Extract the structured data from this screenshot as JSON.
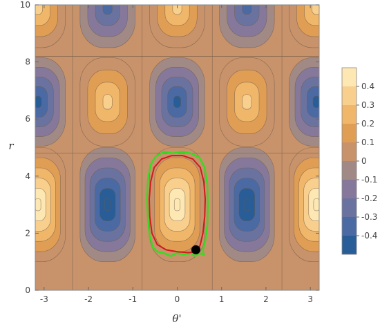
{
  "chart_data": {
    "type": "contour",
    "xlabel": "θ'",
    "ylabel": "r",
    "xlim": [
      -3.2,
      3.2
    ],
    "ylim": [
      0,
      10
    ],
    "x_ticks": [
      -3,
      -2,
      -1,
      0,
      1,
      2,
      3
    ],
    "y_ticks": [
      0,
      2,
      4,
      6,
      8,
      10
    ],
    "x_tick_labels": [
      "-3",
      "-2",
      "-1",
      "0",
      "1",
      "2",
      "3"
    ],
    "y_tick_labels": [
      "0",
      "2",
      "4",
      "6",
      "8",
      "10"
    ],
    "colorbar": {
      "levels": [
        -0.4,
        -0.3,
        -0.2,
        -0.1,
        0,
        0.1,
        0.2,
        0.3,
        0.4
      ],
      "labels": [
        "-0.4",
        "-0.3",
        "-0.2",
        "-0.1",
        "0",
        "0.1",
        "0.2",
        "0.3",
        "0.4"
      ],
      "range": [
        -0.5,
        0.5
      ],
      "colors": [
        "#295d97",
        "#4b6aa3",
        "#6a73a0",
        "#86789a",
        "#a18a85",
        "#c8926a",
        "#e09e55",
        "#f0b669",
        "#f8cf8d",
        "#fde7b3",
        "#fff6d8"
      ]
    },
    "regions": [
      {
        "r_range": [
          0,
          4.8
        ],
        "band": "lower",
        "extrema": [
          {
            "theta": -3.14,
            "r": 3.0,
            "value": 0.45
          },
          {
            "theta": -1.57,
            "r": 3.0,
            "value": -0.45
          },
          {
            "theta": 0.0,
            "r": 3.0,
            "value": 0.45
          },
          {
            "theta": 1.57,
            "r": 3.0,
            "value": -0.45
          },
          {
            "theta": 3.14,
            "r": 3.0,
            "value": 0.45
          }
        ]
      },
      {
        "r_range": [
          4.8,
          8.2
        ],
        "band": "middle",
        "extrema": [
          {
            "theta": -3.14,
            "r": 6.6,
            "value": -0.38
          },
          {
            "theta": -1.57,
            "r": 6.6,
            "value": 0.3
          },
          {
            "theta": 0.0,
            "r": 6.6,
            "value": -0.38
          },
          {
            "theta": 1.57,
            "r": 6.6,
            "value": 0.3
          },
          {
            "theta": 3.14,
            "r": 6.6,
            "value": -0.38
          }
        ]
      },
      {
        "r_range": [
          8.2,
          10.0
        ],
        "band": "upper",
        "extrema": [
          {
            "theta": -3.14,
            "r": 9.9,
            "value": 0.3
          },
          {
            "theta": -1.57,
            "r": 9.9,
            "value": -0.3
          },
          {
            "theta": 0.0,
            "r": 9.9,
            "value": 0.3
          },
          {
            "theta": 1.57,
            "r": 9.9,
            "value": -0.3
          },
          {
            "theta": 3.14,
            "r": 9.9,
            "value": 0.3
          }
        ]
      }
    ],
    "trajectory_green": {
      "color": "#33dd22",
      "points": [
        [
          0.58,
          1.4
        ],
        [
          0.6,
          1.25
        ],
        [
          0.5,
          1.3
        ],
        [
          0.4,
          1.2
        ],
        [
          0.3,
          1.3
        ],
        [
          0.15,
          1.25
        ],
        [
          0.0,
          1.3
        ],
        [
          -0.15,
          1.2
        ],
        [
          -0.3,
          1.3
        ],
        [
          -0.45,
          1.35
        ],
        [
          -0.55,
          1.5
        ],
        [
          -0.62,
          1.9
        ],
        [
          -0.66,
          2.5
        ],
        [
          -0.68,
          3.2
        ],
        [
          -0.66,
          3.9
        ],
        [
          -0.6,
          4.4
        ],
        [
          -0.48,
          4.7
        ],
        [
          -0.3,
          4.85
        ],
        [
          -0.1,
          4.8
        ],
        [
          0.1,
          4.85
        ],
        [
          0.3,
          4.8
        ],
        [
          0.5,
          4.65
        ],
        [
          0.62,
          4.3
        ],
        [
          0.68,
          3.7
        ],
        [
          0.69,
          3.0
        ],
        [
          0.68,
          2.3
        ],
        [
          0.64,
          1.8
        ],
        [
          0.6,
          1.55
        ],
        [
          0.58,
          1.4
        ]
      ]
    },
    "trajectory_red": {
      "color": "#d11a1a",
      "points": [
        [
          0.45,
          1.35
        ],
        [
          0.25,
          1.32
        ],
        [
          0.0,
          1.35
        ],
        [
          -0.25,
          1.42
        ],
        [
          -0.45,
          1.6
        ],
        [
          -0.57,
          2.0
        ],
        [
          -0.62,
          2.6
        ],
        [
          -0.63,
          3.2
        ],
        [
          -0.6,
          3.8
        ],
        [
          -0.52,
          4.3
        ],
        [
          -0.35,
          4.6
        ],
        [
          -0.12,
          4.72
        ],
        [
          0.12,
          4.72
        ],
        [
          0.35,
          4.6
        ],
        [
          0.52,
          4.3
        ],
        [
          0.6,
          3.8
        ],
        [
          0.63,
          3.2
        ],
        [
          0.62,
          2.6
        ],
        [
          0.58,
          2.0
        ],
        [
          0.52,
          1.6
        ],
        [
          0.45,
          1.35
        ]
      ]
    },
    "marker": {
      "theta": 0.42,
      "r": 1.42,
      "color": "#000000"
    },
    "grid": false,
    "legend": "none"
  }
}
